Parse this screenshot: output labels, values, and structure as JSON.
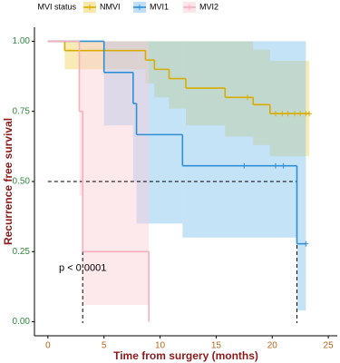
{
  "chart_data": {
    "type": "survival",
    "x_label": "Time from surgery (months)",
    "y_label": "Recurrence free survival",
    "legend_title": "MVI status",
    "legend_position": "top",
    "annotation": {
      "text": "p < 0.0001",
      "x": 3.1,
      "y": 0.19
    },
    "median": {
      "y": 0.5,
      "x": [
        3.1,
        22.2
      ]
    },
    "xlim": [
      -1.2,
      25.8
    ],
    "ylim": [
      -0.05,
      1.05
    ],
    "xticks": [
      0,
      5,
      10,
      15,
      20,
      25
    ],
    "yticks": [
      {
        "value": 0,
        "label": "0.00"
      },
      {
        "value": 0.25,
        "label": "0.25"
      },
      {
        "value": 0.5,
        "label": "0.50"
      },
      {
        "value": 0.75,
        "label": "0.75"
      },
      {
        "value": 1,
        "label": "1.00"
      }
    ],
    "series": [
      {
        "name": "NMVI",
        "color": "#d9ad00",
        "band_color": "#f0d35a",
        "x": [
          0,
          1.5,
          8.7,
          9.5,
          10.8,
          12.3,
          15.8,
          18.3,
          19.8,
          23.3
        ],
        "values": [
          1,
          0.967,
          0.933,
          0.9,
          0.867,
          0.833,
          0.8,
          0.774,
          0.742,
          0.742
        ],
        "ci_lower": [
          1,
          0.9,
          0.85,
          0.8,
          0.76,
          0.7,
          0.66,
          0.63,
          0.59,
          0.59
        ],
        "ci_upper": [
          1,
          1,
          1,
          1,
          1,
          1,
          1,
          0.97,
          0.93,
          0.93
        ],
        "censor_x": [
          17.8,
          20.3,
          20.9,
          21.4,
          22,
          22.5,
          23,
          23.3
        ],
        "censor_values": [
          0.8,
          0.742,
          0.742,
          0.742,
          0.742,
          0.742,
          0.742,
          0.742
        ]
      },
      {
        "name": "MVI1",
        "color": "#2e8fd4",
        "band_color": "#7fc0ee",
        "x": [
          0,
          5,
          7.6,
          7.9,
          12,
          22.2,
          23
        ],
        "values": [
          1,
          0.889,
          0.778,
          0.667,
          0.556,
          0.278,
          0.278
        ],
        "ci_lower": [
          1,
          0.7,
          0.5,
          0.35,
          0.3,
          0.04,
          0.04
        ],
        "ci_upper": [
          1,
          1,
          1,
          1,
          1,
          1,
          1
        ],
        "censor_x": [
          17.5,
          20.3,
          21,
          23
        ],
        "censor_values": [
          0.556,
          0.556,
          0.556,
          0.278
        ]
      },
      {
        "name": "MVI2",
        "color": "#f7aebd",
        "band_color": "#fbcbd5",
        "x": [
          0,
          2.8,
          3.1,
          9
        ],
        "values": [
          1,
          0.75,
          0.25,
          0
        ],
        "ci_lower": [
          1,
          0.45,
          0.06,
          0
        ],
        "ci_upper": [
          1,
          1,
          1,
          0
        ],
        "censor_x": [],
        "censor_values": []
      }
    ]
  }
}
